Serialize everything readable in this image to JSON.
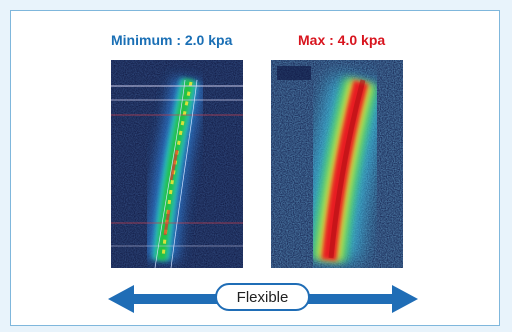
{
  "labels": {
    "minimum": "Minimum : 2.0 kpa",
    "max": "Max : 4.0 kpa"
  },
  "arrow": {
    "label": "Flexible",
    "color": "#1f6db6"
  },
  "colors": {
    "minimum_label": "#1a6fb5",
    "max_label": "#d8141e",
    "frame_border": "#7fb7dc",
    "background": "#e8f3fb"
  }
}
